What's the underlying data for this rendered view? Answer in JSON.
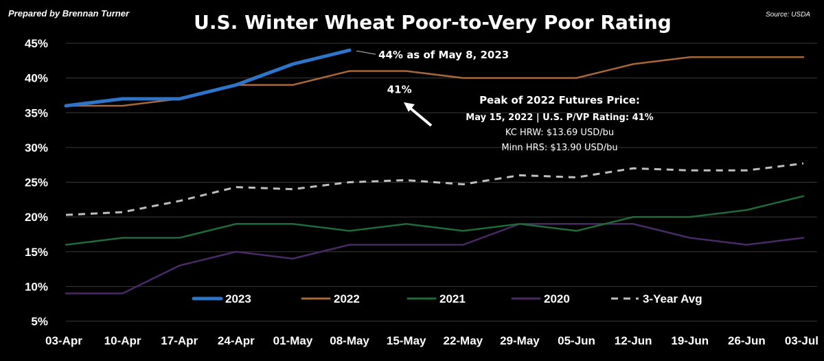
{
  "credit": "Prepared by Brennan Turner",
  "source": "Source: USDA",
  "chart_data": {
    "type": "line",
    "title": "U.S. Winter Wheat Poor-to-Very Poor Rating",
    "categories": [
      "03-Apr",
      "10-Apr",
      "17-Apr",
      "24-Apr",
      "01-May",
      "08-May",
      "15-May",
      "22-May",
      "29-May",
      "05-Jun",
      "12-Jun",
      "19-Jun",
      "26-Jun",
      "03-Jul"
    ],
    "ylim": [
      5,
      45
    ],
    "yticks": [
      5,
      10,
      15,
      20,
      25,
      30,
      35,
      40,
      45
    ],
    "ytick_labels": [
      "5%",
      "10%",
      "15%",
      "20%",
      "25%",
      "30%",
      "35%",
      "40%",
      "45%"
    ],
    "grid": true,
    "legend_position": "bottom",
    "series": [
      {
        "name": "2023",
        "color": "#2e75c9",
        "dash": false,
        "width": 5,
        "values": [
          36,
          37,
          37,
          39,
          42,
          44,
          null,
          null,
          null,
          null,
          null,
          null,
          null,
          null
        ]
      },
      {
        "name": "2022",
        "color": "#a8683a",
        "dash": false,
        "width": 2.5,
        "values": [
          36,
          36,
          37,
          39,
          39,
          41,
          41,
          40,
          40,
          40,
          42,
          43,
          43,
          43
        ]
      },
      {
        "name": "2021",
        "color": "#1f6b3a",
        "dash": false,
        "width": 2.5,
        "values": [
          16,
          17,
          17,
          19,
          19,
          18,
          19,
          18,
          19,
          18,
          20,
          20,
          21,
          23
        ]
      },
      {
        "name": "2020",
        "color": "#4a2a66",
        "dash": false,
        "width": 2.5,
        "values": [
          9,
          9,
          13,
          15,
          14,
          16,
          16,
          16,
          19,
          19,
          19,
          17,
          16,
          17
        ]
      },
      {
        "name": "3-Year Avg",
        "color": "#bfbfbf",
        "dash": true,
        "width": 3,
        "values": [
          20.3,
          20.7,
          22.3,
          24.3,
          24.0,
          25.0,
          25.3,
          24.7,
          26.0,
          25.7,
          27.0,
          26.7,
          26.7,
          27.7
        ]
      }
    ],
    "annotations": {
      "latest": "44% as of May 8, 2023",
      "peak_value": "41%",
      "peak_title": "Peak of 2022 Futures Price:",
      "peak_line1": "May 15, 2022 | U.S. P/VP Rating: 41%",
      "peak_line2": "KC HRW: $13.69 USD/bu",
      "peak_line3": "Minn HRS: $13.90 USD/bu"
    }
  }
}
